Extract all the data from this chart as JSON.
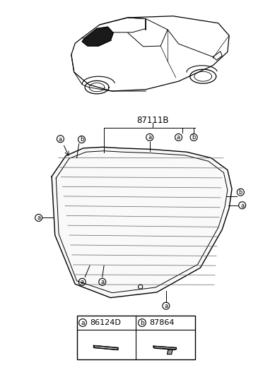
{
  "bg_color": "#ffffff",
  "title": "87111B",
  "part_a_code": "86124D",
  "part_b_code": "87864",
  "text_color": "#000000",
  "line_color": "#000000",
  "label_a": "a",
  "label_b": "b"
}
